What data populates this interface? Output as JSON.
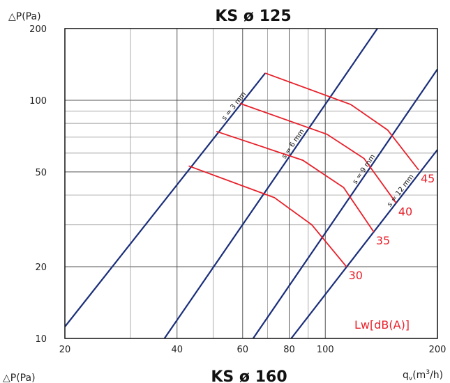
{
  "chart_data": {
    "type": "line",
    "title": "KS ø 125",
    "footer_title": "KS ø 160",
    "ylabel": "△P(Pa)",
    "ylabel_bottom": "△P(Pa)",
    "xlabel": "q",
    "xlabel_sub": "v",
    "xlabel_unit": "(m",
    "xlabel_sup": "3",
    "xlabel_end": "/h)",
    "x_scale": "log",
    "y_scale": "log",
    "xlim": [
      20,
      200
    ],
    "ylim": [
      10,
      200
    ],
    "x_ticks": [
      20,
      40,
      60,
      80,
      100,
      200
    ],
    "y_ticks": [
      10,
      20,
      50,
      100,
      200
    ],
    "x_tick_labels": [
      "20",
      "40",
      "60",
      "80",
      "100",
      "200"
    ],
    "y_tick_labels": [
      "10",
      "20",
      "50",
      "100",
      "200"
    ],
    "grid": true,
    "colors": {
      "system_line": "#1a2e7a",
      "noise_line": "#e8202a",
      "grid": "#888888",
      "label_red": "#e8202a"
    },
    "system_lines": [
      {
        "name": "s = 3 mm",
        "points": [
          [
            20,
            11.2
          ],
          [
            69,
            130
          ]
        ]
      },
      {
        "name": "s = 6 mm",
        "points": [
          [
            37,
            10
          ],
          [
            138,
            200
          ]
        ]
      },
      {
        "name": "s = 9 mm",
        "points": [
          [
            64,
            10
          ],
          [
            200,
            135
          ]
        ]
      },
      {
        "name": "s = 12 mm",
        "points": [
          [
            81,
            10
          ],
          [
            200,
            62
          ]
        ]
      }
    ],
    "noise_lines": [
      {
        "name": "30",
        "points": [
          [
            43,
            53
          ],
          [
            73,
            39
          ],
          [
            92,
            30
          ],
          [
            114,
            20
          ]
        ]
      },
      {
        "name": "35",
        "points": [
          [
            51,
            74
          ],
          [
            87,
            56
          ],
          [
            112,
            43
          ],
          [
            135,
            28
          ]
        ]
      },
      {
        "name": "40",
        "points": [
          [
            59,
            97
          ],
          [
            101,
            72
          ],
          [
            127,
            57
          ],
          [
            155,
            37
          ]
        ]
      },
      {
        "name": "45",
        "points": [
          [
            69,
            130
          ],
          [
            117,
            96
          ],
          [
            147,
            75
          ],
          [
            178,
            51
          ]
        ]
      }
    ],
    "legend_label": "Lw[dB(A)]"
  }
}
